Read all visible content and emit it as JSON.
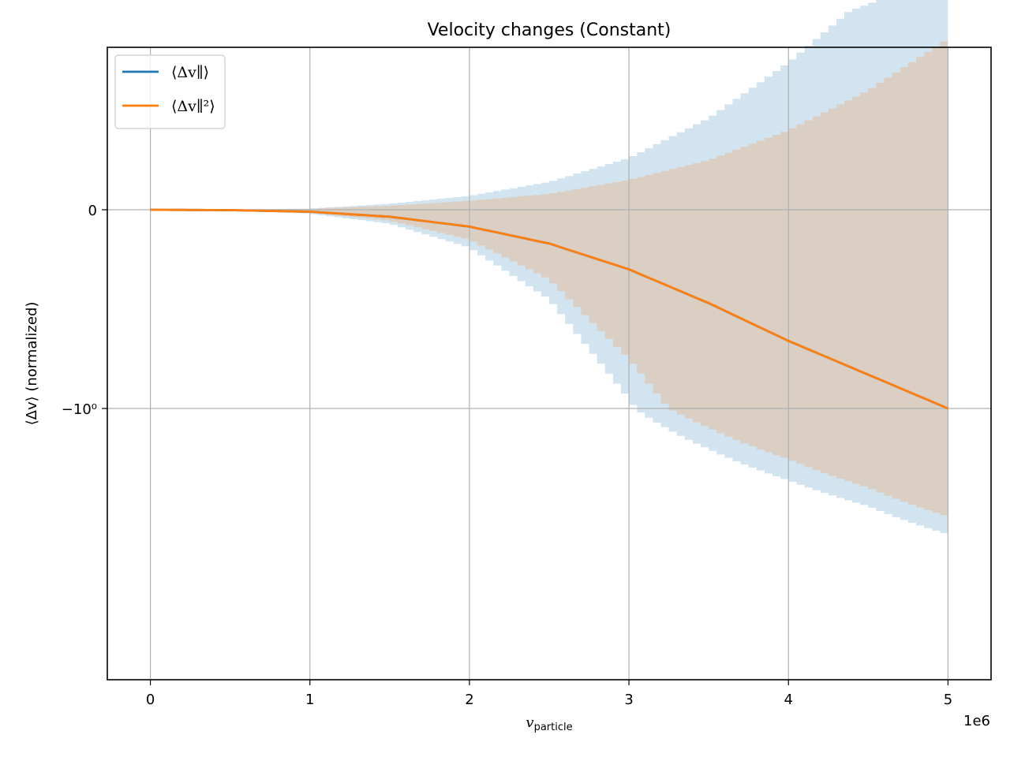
{
  "chart_data": {
    "type": "line",
    "title": "Velocity changes (Constant)",
    "xlabel_main": "v",
    "xlabel_sub": "particle",
    "ylabel": "⟨Δv⟩ (normalized)",
    "x_offset_text": "1e6",
    "xlim": [
      -270000,
      5270000
    ],
    "x_ticks": [
      {
        "value": 0,
        "label": "0"
      },
      {
        "value": 1000000,
        "label": "1"
      },
      {
        "value": 2000000,
        "label": "2"
      },
      {
        "value": 3000000,
        "label": "3"
      },
      {
        "value": 4000000,
        "label": "4"
      },
      {
        "value": 5000000,
        "label": "5"
      }
    ],
    "y_scale": "symlog",
    "y_ticks": [
      {
        "value": 0,
        "label": "0"
      },
      {
        "value": -1,
        "label": "−10⁰"
      }
    ],
    "grid": true,
    "legend_position": "top-left",
    "legend": [
      {
        "label": "⟨Δv∥⟩",
        "color": "#1f77b4"
      },
      {
        "label": "⟨Δv∥²⟩",
        "color": "#ff7f0e"
      }
    ],
    "x": [
      0,
      500000,
      1000000,
      1500000,
      2000000,
      2500000,
      3000000,
      3500000,
      4000000,
      4500000,
      5000000
    ],
    "series": [
      {
        "name": "⟨Δv∥⟩",
        "color": "#1f77b4",
        "values": [
          0,
          -0.002,
          -0.01,
          -0.035,
          -0.085,
          -0.17,
          -0.3,
          -0.47,
          -0.66,
          -0.83,
          -1.0
        ],
        "band_upper": [
          0,
          0.001,
          0.006,
          0.03,
          0.07,
          0.14,
          0.26,
          0.46,
          0.74,
          1.08,
          1.52
        ],
        "band_lower": [
          0,
          -0.003,
          -0.02,
          -0.07,
          -0.19,
          -0.45,
          -0.95,
          -1.6,
          -2.3,
          -3.1,
          -4.3
        ]
      },
      {
        "name": "⟨Δv∥²⟩",
        "color": "#ff7f0e",
        "values": [
          0,
          -0.002,
          -0.01,
          -0.035,
          -0.085,
          -0.17,
          -0.3,
          -0.47,
          -0.66,
          -0.83,
          -1.0
        ],
        "band_upper": [
          0,
          0.001,
          0.005,
          0.02,
          0.045,
          0.08,
          0.15,
          0.25,
          0.4,
          0.6,
          0.86
        ],
        "band_lower": [
          0,
          -0.003,
          -0.016,
          -0.055,
          -0.15,
          -0.35,
          -0.75,
          -1.25,
          -1.8,
          -2.5,
          -3.5
        ]
      }
    ]
  }
}
